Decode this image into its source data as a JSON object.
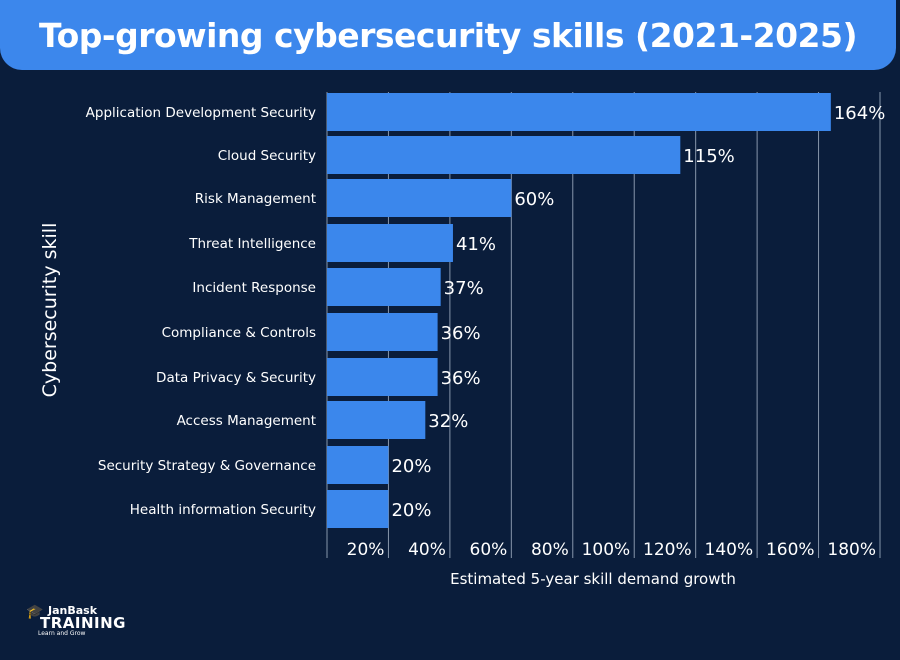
{
  "chart_data": {
    "type": "bar",
    "orientation": "horizontal",
    "title": "Top-growing cybersecurity skills (2021-2025)",
    "xlabel": "Estimated 5-year skill demand growth",
    "ylabel": "Cybersecurity skill",
    "categories": [
      "Application Development Security",
      "Cloud Security",
      "Risk Management",
      "Threat Intelligence",
      "Incident Response",
      "Compliance & Controls",
      "Data Privacy & Security",
      "Access Management",
      "Security Strategy & Governance",
      "Health information Security"
    ],
    "values": [
      164,
      115,
      60,
      41,
      37,
      36,
      36,
      32,
      20,
      20
    ],
    "value_labels": [
      "164%",
      "115%",
      "60%",
      "41%",
      "37%",
      "36%",
      "36%",
      "32%",
      "20%",
      "20%"
    ],
    "x_ticks": [
      "20%",
      "40%",
      "60%",
      "80%",
      "100%",
      "120%",
      "140%",
      "160%",
      "180%"
    ],
    "xlim": [
      0,
      180
    ],
    "grid": "vertical",
    "colors": {
      "bar": "#3b87ec",
      "background": "#0a1d3b",
      "title_bar": "#3c87ec"
    }
  },
  "logo": {
    "brand": "JanBask",
    "name": "TRAINING",
    "tagline": "Learn and Grow"
  }
}
